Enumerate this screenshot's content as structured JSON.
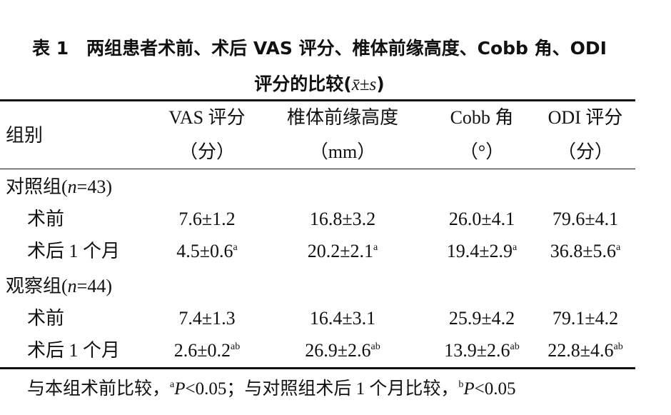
{
  "title": {
    "line1": "表 1　两组患者术前、术后 VAS 评分、椎体前缘高度、Cobb 角、ODI",
    "line2_text": "评分的比较(",
    "line2_x": "x̄",
    "line2_pm": "±",
    "line2_s": "s",
    "line2_end": ")"
  },
  "table": {
    "header": {
      "group": "组别",
      "columns": [
        {
          "name": "VAS 评分",
          "unit": "（分）"
        },
        {
          "name": "椎体前缘高度",
          "unit": "（mm）"
        },
        {
          "name": "Cobb 角",
          "unit": "（°）"
        },
        {
          "name": "ODI 评分",
          "unit": "（分）"
        }
      ]
    },
    "groups": [
      {
        "label": "对照组(",
        "n": "n",
        "count": "=43)",
        "rows": [
          {
            "label": "术前",
            "cells": [
              {
                "value": "7.6±1.2"
              },
              {
                "value": "16.8±3.2"
              },
              {
                "value": "26.0±4.1"
              },
              {
                "value": "79.6±4.1"
              }
            ]
          },
          {
            "label": "术后 1 个月",
            "cells": [
              {
                "value": "4.5±0.6",
                "mark": "a"
              },
              {
                "value": "20.2±2.1",
                "mark": "a"
              },
              {
                "value": "19.4±2.9",
                "mark": "a"
              },
              {
                "value": "36.8±5.6",
                "mark": "a"
              }
            ]
          }
        ]
      },
      {
        "label": "观察组(",
        "n": "n",
        "count": "=44)",
        "rows": [
          {
            "label": "术前",
            "cells": [
              {
                "value": "7.4±1.3"
              },
              {
                "value": "16.4±3.1"
              },
              {
                "value": "25.9±4.2"
              },
              {
                "value": "79.1±4.2"
              }
            ]
          },
          {
            "label": "术后 1 个月",
            "cells": [
              {
                "value": "2.6±0.2",
                "mark": "ab"
              },
              {
                "value": "26.9±2.6",
                "mark": "ab"
              },
              {
                "value": "13.9±2.6",
                "mark": "ab"
              },
              {
                "value": "22.8±4.6",
                "mark": "ab"
              }
            ]
          }
        ]
      }
    ]
  },
  "footnote": {
    "parts": [
      "与本组术前比较，",
      "a",
      "P",
      "<0.05；与对照组术后 1 个月比较，",
      "b",
      "P",
      "<0.05"
    ]
  }
}
